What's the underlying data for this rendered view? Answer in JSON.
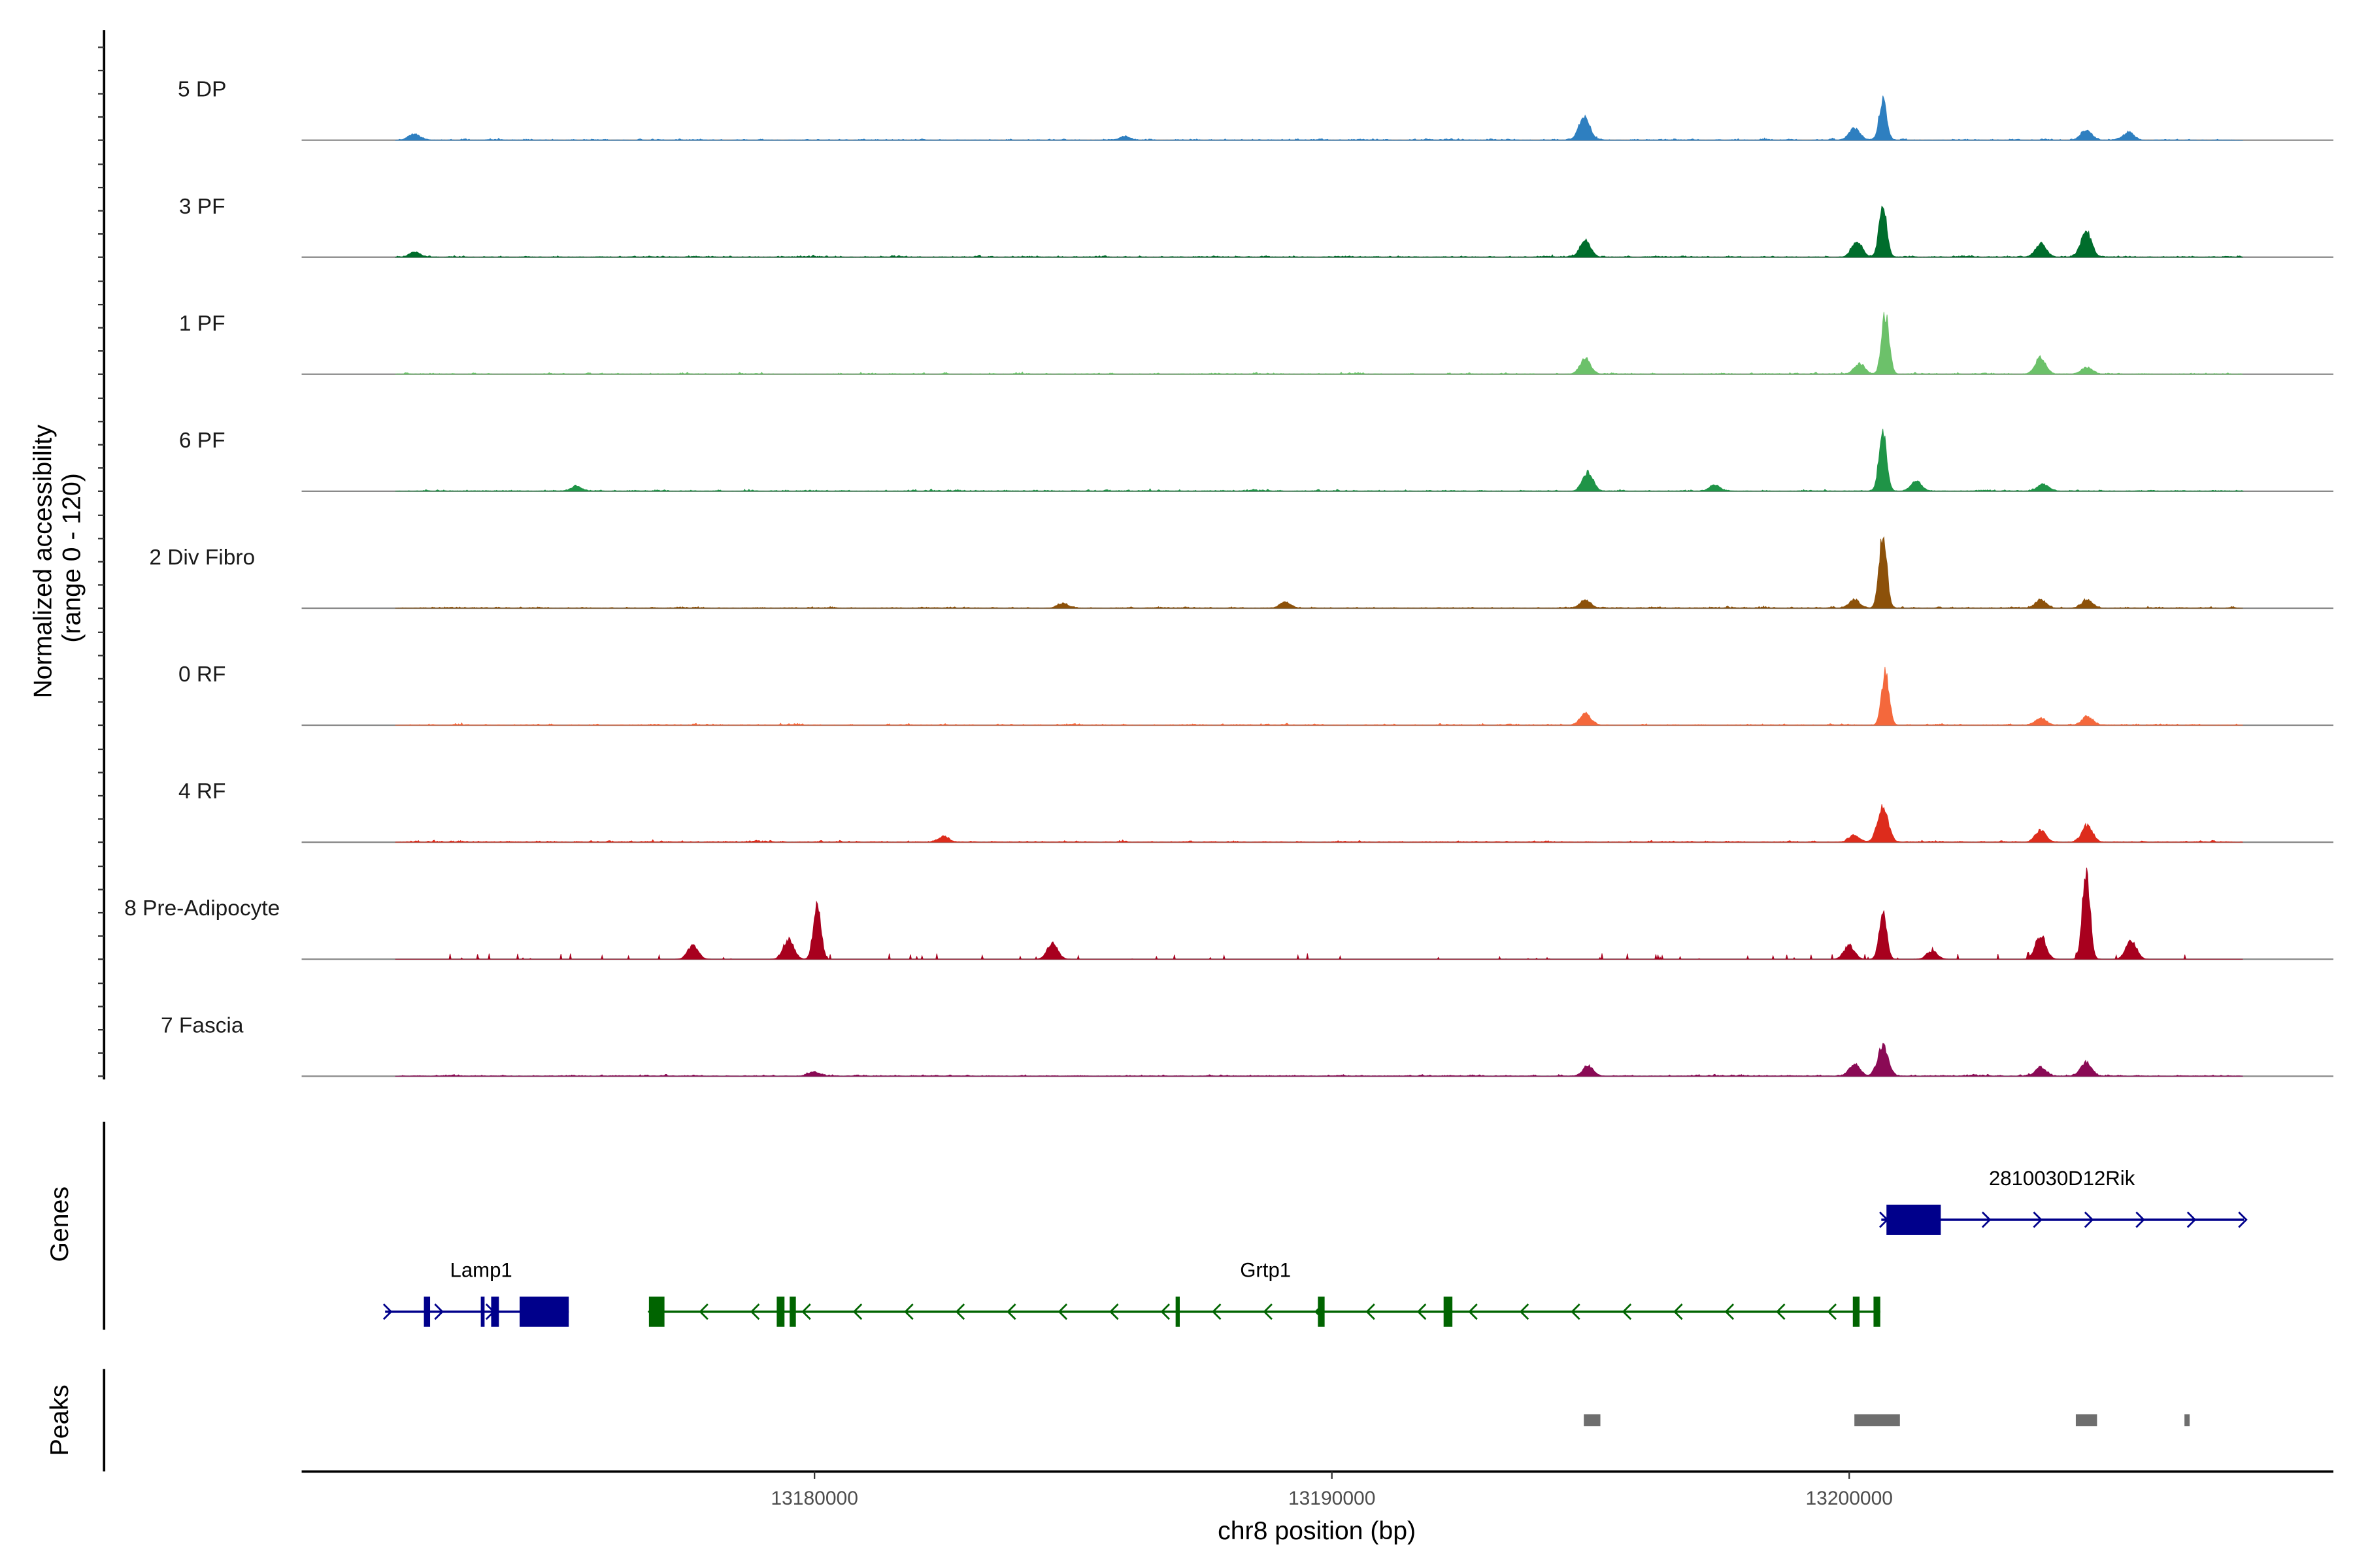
{
  "chart_data": {
    "type": "area",
    "title": "",
    "ylabel": "Normalized accessibility\n(range 0 - 120)",
    "ylabel_lines": [
      "Normalized accessibility",
      "(range 0 - 120)"
    ],
    "xlabel": "chr8 position (bp)",
    "ylim": [
      0,
      120
    ],
    "xlim": [
      13170090,
      13209360
    ],
    "x_ticks": [
      13180000,
      13190000,
      13200000
    ],
    "x_tick_labels": [
      "13180000",
      "13190000",
      "13200000"
    ],
    "grid": false,
    "legend": "none",
    "series": [
      {
        "name": "5 DP",
        "color": "#2e7fc0",
        "peaks": [
          [
            13172270,
            7
          ],
          [
            13194880,
            28
          ],
          [
            13200650,
            47
          ],
          [
            13200100,
            14
          ],
          [
            13204580,
            12
          ],
          [
            13205400,
            9
          ],
          [
            13186000,
            4
          ]
        ]
      },
      {
        "name": "3 PF",
        "color": "#006d2c",
        "peaks": [
          [
            13172270,
            6
          ],
          [
            13194900,
            19
          ],
          [
            13200650,
            61
          ],
          [
            13200150,
            19
          ],
          [
            13203700,
            16
          ],
          [
            13204580,
            31
          ]
        ]
      },
      {
        "name": "1 PF",
        "color": "#6cc16a",
        "peaks": [
          [
            13194900,
            19
          ],
          [
            13200700,
            70
          ],
          [
            13200200,
            12
          ],
          [
            13203700,
            19
          ],
          [
            13204600,
            8
          ]
        ]
      },
      {
        "name": "6 PF",
        "color": "#1f9447",
        "peaks": [
          [
            13175400,
            6
          ],
          [
            13194950,
            22
          ],
          [
            13197400,
            7
          ],
          [
            13200650,
            70
          ],
          [
            13201300,
            12
          ],
          [
            13203750,
            8
          ]
        ]
      },
      {
        "name": "2 Div Fibro",
        "color": "#8c510a",
        "peaks": [
          [
            13184800,
            5
          ],
          [
            13189100,
            7
          ],
          [
            13194900,
            9
          ],
          [
            13200650,
            89
          ],
          [
            13200100,
            10
          ],
          [
            13203700,
            10
          ],
          [
            13204600,
            10
          ]
        ]
      },
      {
        "name": "0 RF",
        "color": "#f4683c",
        "peaks": [
          [
            13194900,
            14
          ],
          [
            13200700,
            62
          ],
          [
            13203700,
            8
          ],
          [
            13204600,
            10
          ]
        ]
      },
      {
        "name": "4 RF",
        "color": "#dd2c1c",
        "peaks": [
          [
            13182500,
            6
          ],
          [
            13200650,
            40
          ],
          [
            13200100,
            8
          ],
          [
            13203700,
            14
          ],
          [
            13204600,
            19
          ]
        ]
      },
      {
        "name": "8 Pre-Adipocyte",
        "color": "#a8001e",
        "peaks": [
          [
            13180050,
            66
          ],
          [
            13179500,
            23
          ],
          [
            13177650,
            16
          ],
          [
            13184600,
            19
          ],
          [
            13200650,
            53
          ],
          [
            13200000,
            16
          ],
          [
            13203700,
            28
          ],
          [
            13204580,
            106
          ],
          [
            13205450,
            22
          ],
          [
            13201600,
            10
          ]
        ]
      },
      {
        "name": "7 Fascia",
        "color": "#8a0a55",
        "peaks": [
          [
            13180000,
            5
          ],
          [
            13194950,
            12
          ],
          [
            13200650,
            34
          ],
          [
            13200100,
            14
          ],
          [
            13204580,
            16
          ],
          [
            13203700,
            10
          ]
        ]
      }
    ],
    "genes_panel_label": "Genes",
    "peaks_panel_label": "Peaks",
    "genes": [
      {
        "name": "Lamp1",
        "strand": "+",
        "color": "#00008b",
        "start": 13171700,
        "end": 13175250,
        "exons": [
          [
            13172450,
            13172570
          ],
          [
            13173550,
            13173620
          ],
          [
            13173750,
            13173900
          ],
          [
            13174300,
            13175250
          ]
        ]
      },
      {
        "name": "Grtp1",
        "strand": "-",
        "color": "#006400",
        "start": 13176800,
        "end": 13200600,
        "exons": [
          [
            13176800,
            13177100
          ],
          [
            13179270,
            13179420
          ],
          [
            13179520,
            13179640
          ],
          [
            13186980,
            13187060
          ],
          [
            13189730,
            13189860
          ],
          [
            13192160,
            13192330
          ],
          [
            13200070,
            13200200
          ],
          [
            13200470,
            13200600
          ]
        ]
      },
      {
        "name": "2810030D12Rik",
        "strand": "+",
        "color": "#00008b",
        "start": 13200620,
        "end": 13207630,
        "exons": [
          [
            13200720,
            13201770
          ]
        ]
      }
    ],
    "peak_regions": [
      [
        13194870,
        13195190
      ],
      [
        13200100,
        13200980
      ],
      [
        13204380,
        13204790
      ],
      [
        13206480,
        13206580
      ]
    ],
    "peak_color": "#6e6e6e"
  }
}
